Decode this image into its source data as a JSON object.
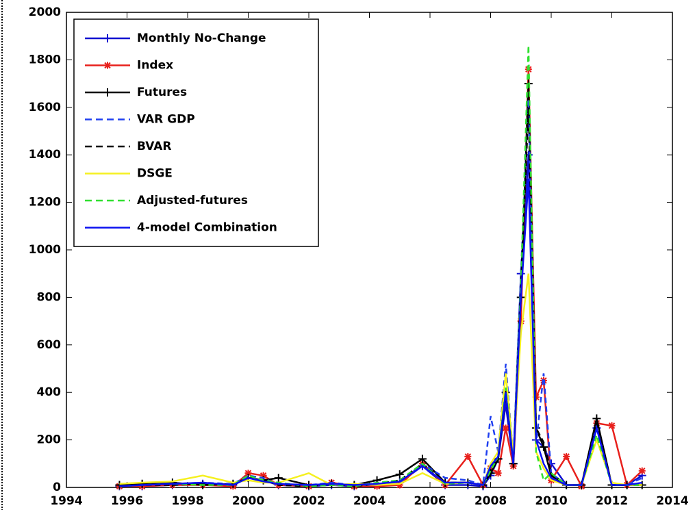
{
  "chart_data": {
    "type": "line",
    "x": [
      1995.75,
      1996.5,
      1997.5,
      1998.5,
      1999.5,
      2000.0,
      2000.5,
      2001.0,
      2002.0,
      2002.75,
      2003.5,
      2004.25,
      2005.0,
      2005.75,
      2006.5,
      2007.25,
      2007.75,
      2008.0,
      2008.25,
      2008.5,
      2008.75,
      2009.0,
      2009.25,
      2009.5,
      2009.75,
      2010.0,
      2010.5,
      2011.0,
      2011.5,
      2012.0,
      2012.5,
      2013.0
    ],
    "series": [
      {
        "name": "Monthly No-Change",
        "color": "#1010d0",
        "dash": false,
        "marker": "+",
        "values": [
          5,
          5,
          10,
          15,
          10,
          40,
          30,
          10,
          5,
          10,
          5,
          10,
          20,
          90,
          10,
          10,
          5,
          50,
          120,
          350,
          100,
          900,
          1400,
          200,
          170,
          100,
          10,
          10,
          250,
          10,
          10,
          50
        ]
      },
      {
        "name": "Index",
        "color": "#e8201c",
        "dash": false,
        "marker": "*",
        "values": [
          5,
          5,
          10,
          10,
          5,
          60,
          50,
          10,
          5,
          20,
          5,
          5,
          10,
          100,
          10,
          130,
          10,
          80,
          60,
          250,
          90,
          700,
          1760,
          380,
          450,
          30,
          130,
          5,
          270,
          260,
          10,
          70
        ]
      },
      {
        "name": "Futures",
        "color": "#000000",
        "dash": false,
        "marker": "+",
        "values": [
          10,
          15,
          20,
          10,
          15,
          40,
          30,
          40,
          10,
          15,
          10,
          30,
          55,
          120,
          20,
          20,
          10,
          60,
          120,
          400,
          100,
          800,
          1700,
          250,
          170,
          50,
          10,
          10,
          290,
          10,
          10,
          10
        ]
      },
      {
        "name": "VAR GDP",
        "color": "#1f3ff0",
        "dash": true,
        "values": [
          5,
          10,
          15,
          20,
          15,
          50,
          40,
          10,
          10,
          20,
          10,
          10,
          20,
          100,
          40,
          30,
          10,
          300,
          150,
          520,
          120,
          900,
          1630,
          180,
          480,
          60,
          10,
          10,
          260,
          10,
          10,
          40
        ]
      },
      {
        "name": "BVAR",
        "color": "#000000",
        "dash": true,
        "values": [
          5,
          10,
          10,
          15,
          10,
          40,
          30,
          10,
          5,
          15,
          5,
          15,
          30,
          100,
          20,
          20,
          10,
          80,
          130,
          400,
          100,
          850,
          1600,
          250,
          190,
          60,
          10,
          10,
          270,
          10,
          10,
          10
        ]
      },
      {
        "name": "DSGE",
        "color": "#f5f020",
        "dash": false,
        "values": [
          15,
          20,
          25,
          50,
          20,
          30,
          20,
          20,
          60,
          10,
          15,
          10,
          15,
          60,
          15,
          20,
          10,
          100,
          150,
          480,
          130,
          650,
          900,
          150,
          80,
          30,
          10,
          10,
          200,
          20,
          10,
          10
        ]
      },
      {
        "name": "Adjusted-futures",
        "color": "#30e030",
        "dash": true,
        "values": [
          5,
          10,
          15,
          10,
          10,
          50,
          30,
          20,
          5,
          10,
          5,
          20,
          30,
          100,
          15,
          20,
          10,
          70,
          130,
          420,
          100,
          850,
          1860,
          150,
          30,
          60,
          10,
          10,
          220,
          10,
          10,
          10
        ]
      },
      {
        "name": "4-model Combination",
        "color": "#0a10f0",
        "dash": false,
        "values": [
          5,
          10,
          15,
          20,
          10,
          40,
          25,
          15,
          10,
          15,
          10,
          15,
          25,
          90,
          20,
          20,
          10,
          90,
          130,
          400,
          100,
          800,
          1300,
          200,
          100,
          40,
          10,
          10,
          250,
          10,
          10,
          20
        ]
      }
    ],
    "xlim": [
      1994,
      2014
    ],
    "xticks": [
      1994,
      1996,
      1998,
      2000,
      2002,
      2004,
      2006,
      2008,
      2010,
      2012,
      2014
    ],
    "ylim": [
      0,
      2000
    ],
    "yticks": [
      0,
      200,
      400,
      600,
      800,
      1000,
      1200,
      1400,
      1600,
      1800,
      2000
    ],
    "grid": false,
    "legend": "upper left"
  }
}
